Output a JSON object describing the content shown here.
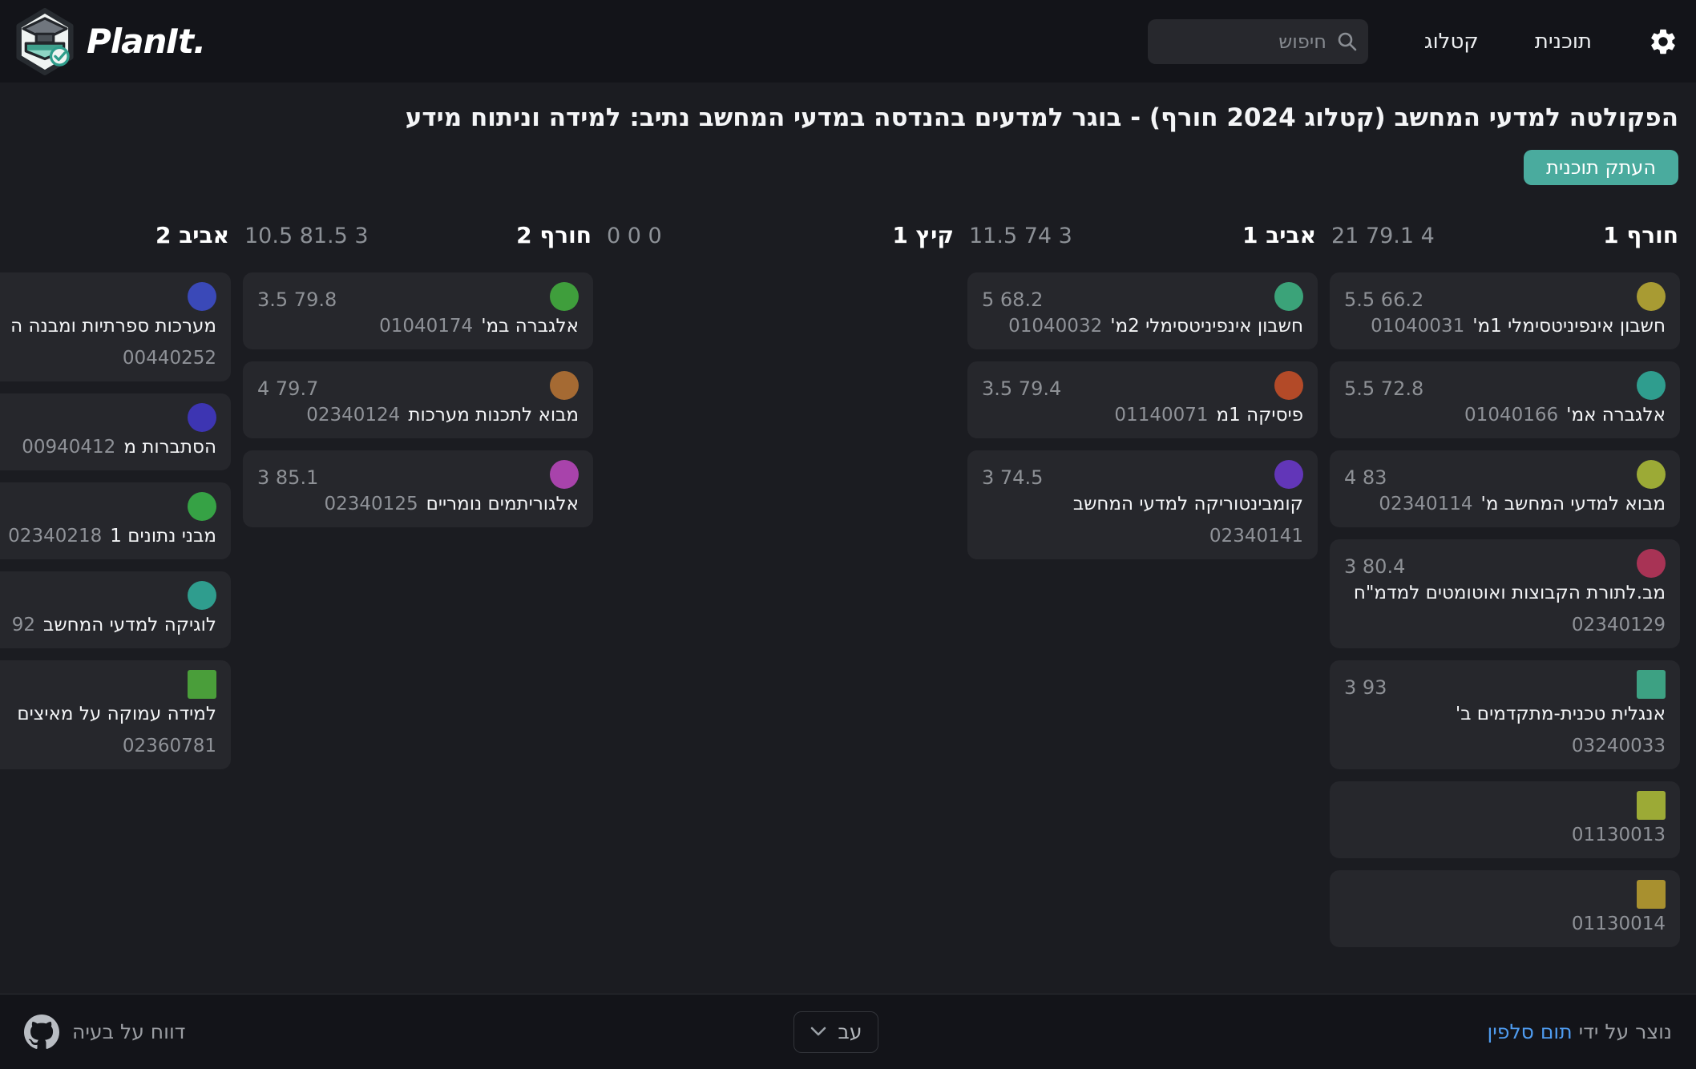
{
  "navbar": {
    "brand": "PlanIt.",
    "search_placeholder": "חיפוש",
    "links": [
      {
        "label": "קטלוג"
      },
      {
        "label": "תוכנית"
      }
    ]
  },
  "page": {
    "title": "הפקולטה למדעי המחשב (קטלוג 2024 חורף) - בוגר למדעים בהנדסה במדעי המחשב נתיב: למידה וניתוח מידע",
    "copy_button": "העתק תוכנית"
  },
  "board": {
    "semesters": [
      {
        "name": "חורף 1",
        "stats": "21 79.1 4",
        "courses": [
          {
            "number": "01040031",
            "name": "חשבון אינפיניטסימלי 1מ'",
            "stats": "5.5 66.2",
            "dot_color": "#a89b33",
            "dot_shape": "circle",
            "number_on_second_line": false
          },
          {
            "number": "01040166",
            "name": "אלגברה אמ'",
            "stats": "5.5 72.8",
            "dot_color": "#2f9d8e",
            "dot_shape": "circle",
            "number_on_second_line": false
          },
          {
            "number": "02340114",
            "name": "מבוא למדעי המחשב מ'",
            "stats": "4 83",
            "dot_color": "#9caa36",
            "dot_shape": "circle",
            "number_on_second_line": false
          },
          {
            "number": "02340129",
            "name": "מב.לתורת הקבוצות ואוטומטים למדמ\"ח",
            "stats": "3 80.4",
            "dot_color": "#a83355",
            "dot_shape": "circle",
            "number_on_second_line": true
          },
          {
            "number": "03240033",
            "name": "אנגלית טכנית-מתקדמים ב'",
            "stats": "3 93",
            "dot_color": "#3da183",
            "dot_shape": "square",
            "number_on_second_line": true
          },
          {
            "number": "01130013",
            "name": "",
            "stats": "",
            "dot_color": "#9caa36",
            "dot_shape": "square",
            "number_on_second_line": false
          },
          {
            "number": "01130014",
            "name": "",
            "stats": "",
            "dot_color": "#a8902f",
            "dot_shape": "square",
            "number_on_second_line": false
          }
        ]
      },
      {
        "name": "אביב 1",
        "stats": "11.5 74 3",
        "courses": [
          {
            "number": "01040032",
            "name": "חשבון אינפיניטסימלי 2מ'",
            "stats": "5 68.2",
            "dot_color": "#3ba379",
            "dot_shape": "circle",
            "number_on_second_line": false
          },
          {
            "number": "01140071",
            "name": "פיסיקה 1מ",
            "stats": "3.5 79.4",
            "dot_color": "#b34a28",
            "dot_shape": "circle",
            "number_on_second_line": false
          },
          {
            "number": "02340141",
            "name": "קומבינטוריקה למדעי המחשב",
            "stats": "3 74.5",
            "dot_color": "#6236b8",
            "dot_shape": "circle",
            "number_on_second_line": true
          }
        ]
      },
      {
        "name": "קיץ 1",
        "stats": "0 0 0",
        "courses": []
      },
      {
        "name": "חורף 2",
        "stats": "10.5 81.5 3",
        "courses": [
          {
            "number": "01040174",
            "name": "אלגברה במ'",
            "stats": "3.5 79.8",
            "dot_color": "#3f9e3c",
            "dot_shape": "circle",
            "number_on_second_line": false
          },
          {
            "number": "02340124",
            "name": "מבוא לתכנות מערכות",
            "stats": "4 79.7",
            "dot_color": "#a56a33",
            "dot_shape": "circle",
            "number_on_second_line": false
          },
          {
            "number": "02340125",
            "name": "אלגוריתמים נומריים",
            "stats": "3 85.1",
            "dot_color": "#a843ab",
            "dot_shape": "circle",
            "number_on_second_line": false
          }
        ]
      },
      {
        "name": "אביב 2",
        "stats": "",
        "courses": [
          {
            "number": "00440252",
            "name": "מערכות ספרתיות ומבנה ה",
            "stats": "",
            "dot_color": "#3a49b8",
            "dot_shape": "circle",
            "number_on_second_line": true
          },
          {
            "number": "00940412",
            "name": "הסתברות מ",
            "stats": "",
            "dot_color": "#3d35b2",
            "dot_shape": "circle",
            "number_on_second_line": false
          },
          {
            "number": "02340218",
            "name": "מבני נתונים 1",
            "stats": "",
            "dot_color": "#36a245",
            "dot_shape": "circle",
            "number_on_second_line": false
          },
          {
            "number": "92",
            "name": "לוגיקה למדעי המחשב",
            "stats": "",
            "dot_color": "#2f9d8e",
            "dot_shape": "circle",
            "number_on_second_line": false
          },
          {
            "number": "02360781",
            "name": "למידה עמוקה על מאיצים",
            "stats": "",
            "dot_color": "#4a9e3a",
            "dot_shape": "square",
            "number_on_second_line": true
          }
        ]
      }
    ]
  },
  "footer": {
    "credit_prefix": "נוצר על ידי",
    "credit_link": "תום סלפין",
    "lang_label": "עב",
    "report_label": "דווח על בעיה"
  },
  "icons": {
    "logo": "graduation-cap-hexagon",
    "search": "magnifier",
    "settings": "gear",
    "github": "octocat",
    "language": "chevron-down"
  },
  "colors": {
    "accent": "#4aab9e",
    "link": "#4f9cf0",
    "page_bg": "#1b1c21",
    "bar_bg": "#131419",
    "card_bg": "#26272c"
  }
}
